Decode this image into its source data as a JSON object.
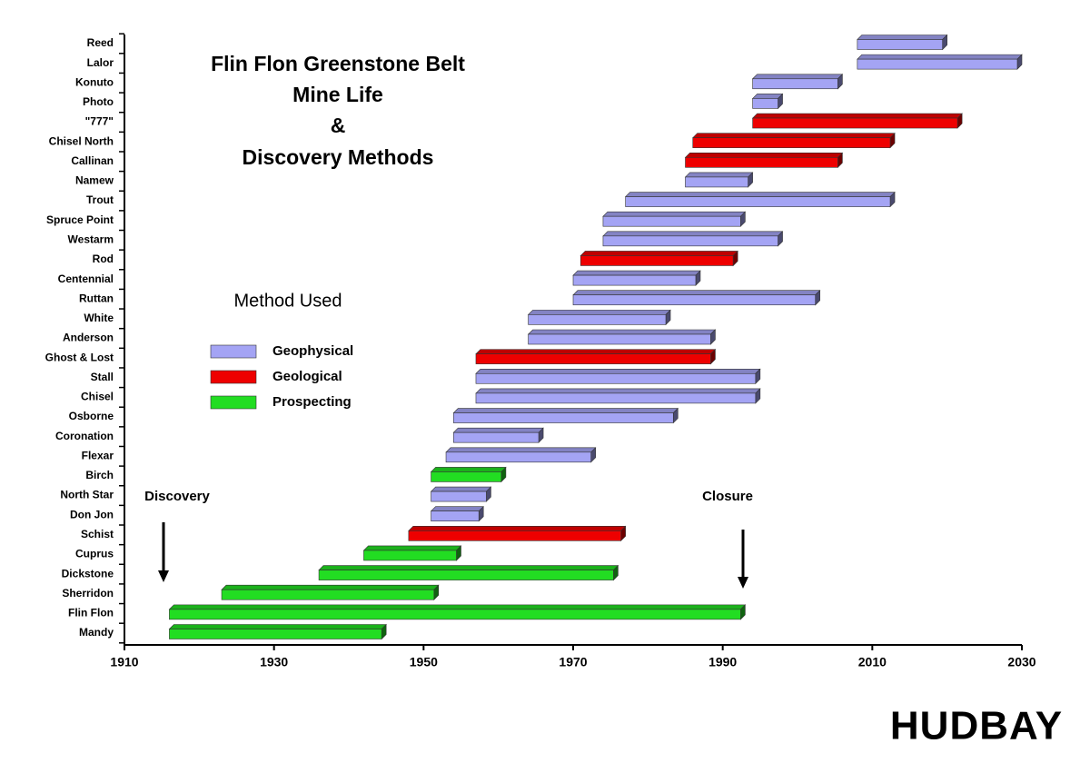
{
  "chart_data": {
    "type": "gantt",
    "title": [
      "Flin Flon Greenstone Belt",
      "Mine Life",
      "&",
      "Discovery Methods"
    ],
    "legend_title": "Method Used",
    "categories": [
      "Reed",
      "Lalor",
      "Konuto",
      "Photo",
      "\"777\"",
      "Chisel North",
      "Callinan",
      "Namew",
      "Trout",
      "Spruce Point",
      "Westarm",
      "Rod",
      "Centennial",
      "Ruttan",
      "White",
      "Anderson",
      "Ghost & Lost",
      "Stall",
      "Chisel",
      "Osborne",
      "Coronation",
      "Flexar",
      "Birch",
      "North Star",
      "Don Jon",
      "Schist",
      "Cuprus",
      "Dickstone",
      "Sherridon",
      "Flin Flon",
      "Mandy"
    ],
    "series": [
      {
        "name": "Geophysical",
        "color": "#a4a4f4",
        "start": [
          2008,
          2008,
          1994,
          1994,
          null,
          null,
          null,
          1985,
          1977,
          1974,
          1974,
          null,
          1970,
          1970,
          1964,
          1964,
          null,
          1957,
          1957,
          1954,
          1954,
          1953,
          null,
          1951,
          1951,
          null,
          null,
          null,
          null,
          null,
          null
        ],
        "end": [
          2020,
          2030,
          2006,
          1998,
          null,
          null,
          null,
          1994,
          2013,
          1993,
          1998,
          null,
          1987,
          2003,
          1983,
          1989,
          null,
          1995,
          1995,
          1984,
          1966,
          1973,
          null,
          1959,
          1958,
          null,
          null,
          null,
          null,
          null,
          null
        ]
      },
      {
        "name": "Geological",
        "color": "#ee0000",
        "start": [
          null,
          null,
          null,
          null,
          1994,
          1986,
          1985,
          null,
          null,
          null,
          null,
          1971,
          null,
          null,
          null,
          null,
          1957,
          null,
          null,
          null,
          null,
          null,
          null,
          null,
          null,
          1948,
          null,
          null,
          null,
          null,
          null
        ],
        "end": [
          null,
          null,
          null,
          null,
          2022,
          2013,
          2006,
          null,
          null,
          null,
          null,
          1992,
          null,
          null,
          null,
          null,
          1989,
          null,
          null,
          null,
          null,
          null,
          null,
          null,
          null,
          1977,
          null,
          null,
          null,
          null,
          null
        ]
      },
      {
        "name": "Prospecting",
        "color": "#22dd22",
        "start": [
          null,
          null,
          null,
          null,
          null,
          null,
          null,
          null,
          null,
          null,
          null,
          null,
          null,
          null,
          null,
          null,
          null,
          null,
          null,
          null,
          null,
          null,
          1951,
          null,
          null,
          null,
          1942,
          1936,
          1923,
          1916,
          1916
        ],
        "end": [
          null,
          null,
          null,
          null,
          null,
          null,
          null,
          null,
          null,
          null,
          null,
          null,
          null,
          null,
          null,
          null,
          null,
          null,
          null,
          null,
          null,
          null,
          1961,
          null,
          null,
          null,
          1955,
          1976,
          1952,
          1993,
          1945
        ]
      }
    ],
    "xlim": [
      1910,
      2030
    ],
    "xticks": [
      1910,
      1930,
      1950,
      1970,
      1990,
      2010,
      2030
    ],
    "annotations": [
      "Discovery",
      "Closure"
    ],
    "logo": "HUDBAY"
  }
}
